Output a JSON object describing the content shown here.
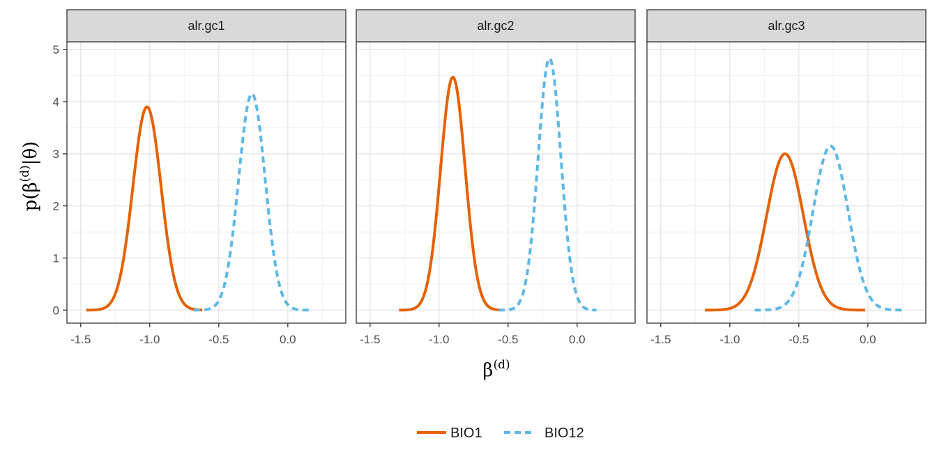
{
  "chart_data": {
    "type": "line",
    "facet": "wrap",
    "xlabel": "β(d)",
    "ylabel": "p(β(d)|θ)",
    "xlim": [
      -1.6,
      0.42
    ],
    "ylim": [
      -0.25,
      5.15
    ],
    "x_ticks": [
      -1.5,
      -1.0,
      -0.5,
      0.0
    ],
    "x_tick_labels": [
      "-1.5",
      "-1.0",
      "-0.5",
      "0.0"
    ],
    "y_ticks": [
      0,
      1,
      2,
      3,
      4,
      5
    ],
    "y_tick_labels": [
      "0",
      "1",
      "2",
      "3",
      "4",
      "5"
    ],
    "legend_position": "bottom",
    "grid": true,
    "series_styles": [
      {
        "name": "BIO1",
        "color": "#E66100",
        "dash": "solid"
      },
      {
        "name": "BIO12",
        "color": "#5DB8E8",
        "dash": "dashed"
      }
    ],
    "panels": [
      {
        "label": "alr.gc1",
        "series": [
          {
            "name": "BIO1",
            "mean": -1.02,
            "peak": 3.9,
            "x_range": [
              -1.46,
              -0.62
            ]
          },
          {
            "name": "BIO12",
            "mean": -0.26,
            "peak": 4.15,
            "x_range": [
              -0.68,
              0.16
            ]
          }
        ]
      },
      {
        "label": "alr.gc2",
        "series": [
          {
            "name": "BIO1",
            "mean": -0.9,
            "peak": 4.47,
            "x_range": [
              -1.29,
              -0.55
            ]
          },
          {
            "name": "BIO12",
            "mean": -0.2,
            "peak": 4.83,
            "x_range": [
              -0.57,
              0.14
            ]
          }
        ]
      },
      {
        "label": "alr.gc3",
        "series": [
          {
            "name": "BIO1",
            "mean": -0.6,
            "peak": 3.0,
            "x_range": [
              -1.18,
              -0.02
            ]
          },
          {
            "name": "BIO12",
            "mean": -0.27,
            "peak": 3.15,
            "x_range": [
              -0.82,
              0.27
            ]
          }
        ]
      }
    ]
  }
}
